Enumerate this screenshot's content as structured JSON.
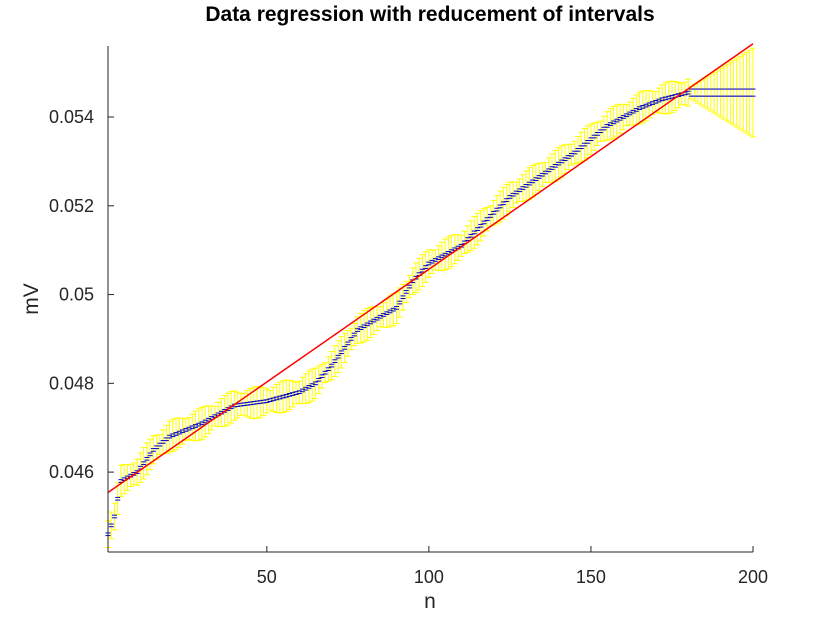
{
  "chart_data": {
    "type": "scatter",
    "title": "Data regression with reducement of intervals",
    "xlabel": "n",
    "ylabel": "mV",
    "xlim": [
      1,
      200
    ],
    "ylim": [
      0.0442,
      0.0556
    ],
    "xticks": [
      50,
      100,
      150,
      200
    ],
    "xtick_labels": [
      "50",
      "100",
      "150",
      "200"
    ],
    "yticks": [
      0.046,
      0.048,
      0.05,
      0.052,
      0.054
    ],
    "ytick_labels": [
      "0.046",
      "0.048",
      "0.05",
      "0.052",
      "0.054"
    ],
    "grid": false,
    "regression_line": {
      "x": [
        1,
        200
      ],
      "y": [
        0.04554,
        0.05565
      ]
    },
    "data_profile": {
      "x": [
        1,
        3,
        5,
        10,
        15,
        20,
        30,
        40,
        50,
        60,
        65,
        70,
        78,
        85,
        90,
        95,
        100,
        110,
        118,
        125,
        135,
        145,
        155,
        165,
        172,
        180,
        200
      ],
      "y": [
        0.0446,
        0.045,
        0.0458,
        0.046,
        0.0465,
        0.0468,
        0.0471,
        0.0475,
        0.0476,
        0.0478,
        0.048,
        0.0484,
        0.0492,
        0.0495,
        0.0497,
        0.0503,
        0.0507,
        0.0511,
        0.0517,
        0.0522,
        0.0527,
        0.0532,
        0.0538,
        0.0542,
        0.0544,
        0.05455,
        0.05455
      ]
    },
    "series": [
      {
        "name": "interval midpoints",
        "color": "#0000cc",
        "marker": "short horizontal dash"
      },
      {
        "name": "interval error bars",
        "color": "#ffff00"
      },
      {
        "name": "regression line",
        "color": "#ff0000"
      }
    ]
  }
}
